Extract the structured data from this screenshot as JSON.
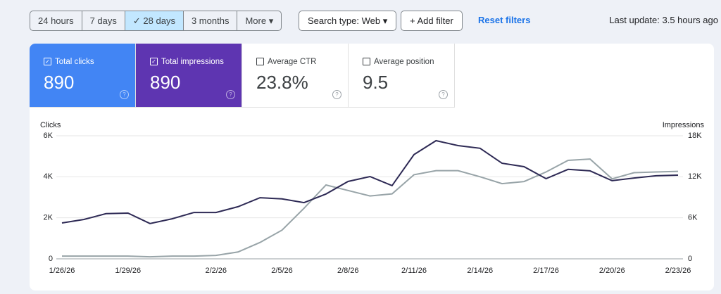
{
  "toolbar": {
    "ranges": [
      "24 hours",
      "7 days",
      "28 days",
      "3 months",
      "More"
    ],
    "selected_range": 2,
    "search_type": "Search type: Web",
    "add_filter": "Add filter",
    "reset": "Reset filters",
    "last_update": "Last update: 3.5 hours ago"
  },
  "cards": [
    {
      "label": "Total clicks",
      "value": "890",
      "checked": true,
      "color": "#4285f4"
    },
    {
      "label": "Total impressions",
      "value": "890",
      "checked": true,
      "color": "#5e35b1"
    },
    {
      "label": "Average CTR",
      "value": "23.8%",
      "checked": false
    },
    {
      "label": "Average position",
      "value": "9.5",
      "checked": false
    }
  ],
  "chart_data": {
    "type": "line",
    "categories": [
      "1/26/26",
      null,
      null,
      "1/29/26",
      null,
      null,
      null,
      "2/2/26",
      null,
      null,
      "2/5/26",
      null,
      null,
      "2/8/26",
      null,
      null,
      "2/11/26",
      null,
      null,
      "2/14/26",
      null,
      null,
      "2/17/26",
      null,
      null,
      "2/20/26",
      null,
      null,
      "2/23/26"
    ],
    "series": [
      {
        "name": "Clicks",
        "color": "#2e2a55",
        "axis": "y",
        "values": [
          1750,
          1920,
          2200,
          2230,
          1720,
          1950,
          2260,
          2260,
          2540,
          2980,
          2920,
          2740,
          3160,
          3770,
          4010,
          3570,
          5080,
          5760,
          5520,
          5390,
          4660,
          4490,
          3910,
          4360,
          4290,
          3810,
          3940,
          4050,
          4080
        ]
      },
      {
        "name": "Impressions",
        "color": "#98a4a8",
        "axis": "y2",
        "values": [
          400,
          400,
          400,
          400,
          300,
          400,
          400,
          500,
          1000,
          2400,
          4200,
          7400,
          10800,
          10000,
          9200,
          9500,
          12300,
          12900,
          12900,
          12000,
          11000,
          11300,
          12700,
          14400,
          14600,
          11700,
          12600,
          12700,
          12800
        ]
      }
    ],
    "ylim": [
      0,
      6000
    ],
    "yticks": [
      0,
      {
        "value": 2000,
        "label": "2K"
      },
      {
        "value": 4000,
        "label": "4K"
      },
      {
        "value": 6000,
        "label": "6K"
      }
    ],
    "y2lim": [
      0,
      18000
    ],
    "y2ticks": [
      0,
      {
        "value": 6000,
        "label": "6K"
      },
      {
        "value": 12000,
        "label": "12K"
      },
      {
        "value": 18000,
        "label": "18K"
      }
    ],
    "grid": true
  }
}
